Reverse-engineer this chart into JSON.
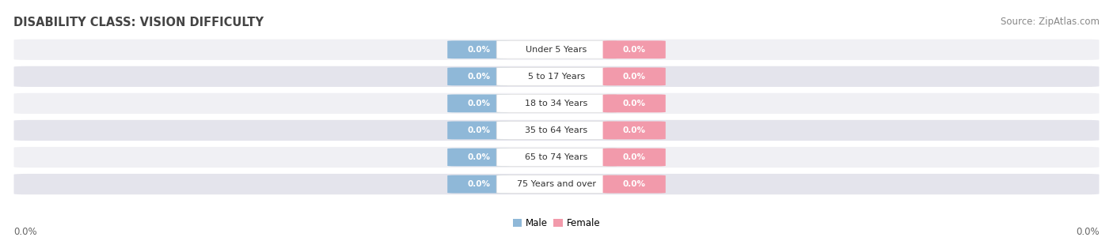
{
  "title": "DISABILITY CLASS: VISION DIFFICULTY",
  "source": "Source: ZipAtlas.com",
  "categories": [
    "Under 5 Years",
    "5 to 17 Years",
    "18 to 34 Years",
    "35 to 64 Years",
    "65 to 74 Years",
    "75 Years and over"
  ],
  "male_values": [
    0.0,
    0.0,
    0.0,
    0.0,
    0.0,
    0.0
  ],
  "female_values": [
    0.0,
    0.0,
    0.0,
    0.0,
    0.0,
    0.0
  ],
  "male_color": "#8fb8d8",
  "female_color": "#f29aab",
  "row_bg_light": "#f0f0f4",
  "row_bg_dark": "#e4e4ec",
  "bar_bg_color": "#e8e8f0",
  "title_fontsize": 10.5,
  "source_fontsize": 8.5,
  "tick_fontsize": 8.5,
  "cat_fontsize": 8.0,
  "val_fontsize": 7.5,
  "legend_male": "Male",
  "legend_female": "Female",
  "background_color": "#ffffff",
  "xlim_left": -1.0,
  "xlim_right": 1.0
}
